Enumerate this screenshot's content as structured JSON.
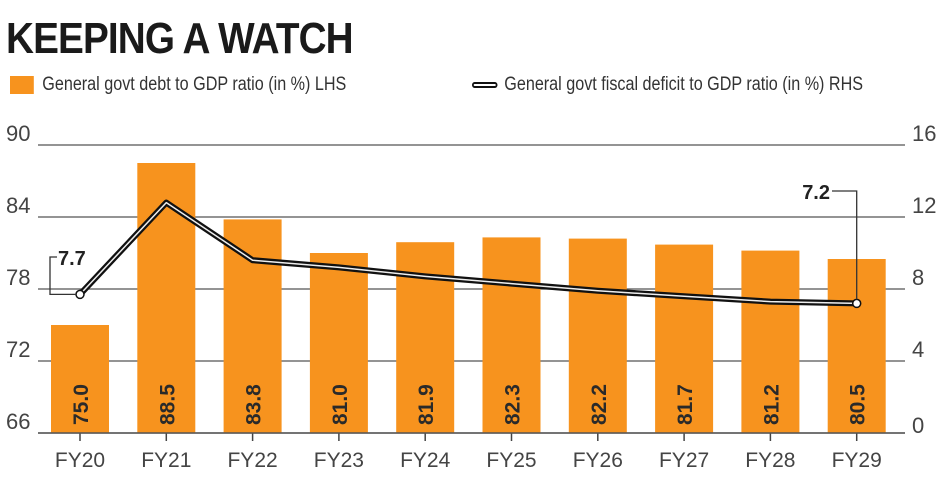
{
  "chart_data": {
    "type": "bar+line",
    "title": "KEEPING A WATCH",
    "categories": [
      "FY20",
      "FY21",
      "FY22",
      "FY23",
      "FY24",
      "FY25",
      "FY26",
      "FY27",
      "FY28",
      "FY29"
    ],
    "series": [
      {
        "name": "General govt debt to GDP ratio (in %) LHS",
        "type": "bar",
        "axis": "left",
        "color": "#f7931e",
        "values": [
          75.0,
          88.5,
          83.8,
          81.0,
          81.9,
          82.3,
          82.2,
          81.7,
          81.2,
          80.5
        ]
      },
      {
        "name": "General govt fiscal deficit to GDP ratio (in %) RHS",
        "type": "line",
        "axis": "right",
        "color": "#111111",
        "values": [
          7.7,
          12.8,
          9.6,
          9.2,
          8.7,
          8.3,
          7.9,
          7.6,
          7.3,
          7.2
        ]
      }
    ],
    "y_left": {
      "range": [
        66,
        90
      ],
      "ticks": [
        "66",
        "72",
        "78",
        "84",
        "90"
      ]
    },
    "y_right": {
      "range": [
        0,
        16
      ],
      "ticks": [
        "0",
        "4",
        "8",
        "12",
        "16"
      ]
    },
    "annotations": [
      {
        "category": "FY20",
        "text": "7.7"
      },
      {
        "category": "FY29",
        "text": "7.2"
      }
    ],
    "bar_labels": [
      "75.0",
      "88.5",
      "83.8",
      "81.0",
      "81.9",
      "82.3",
      "82.2",
      "81.7",
      "81.2",
      "80.5"
    ],
    "grid": true,
    "legend": "top"
  }
}
